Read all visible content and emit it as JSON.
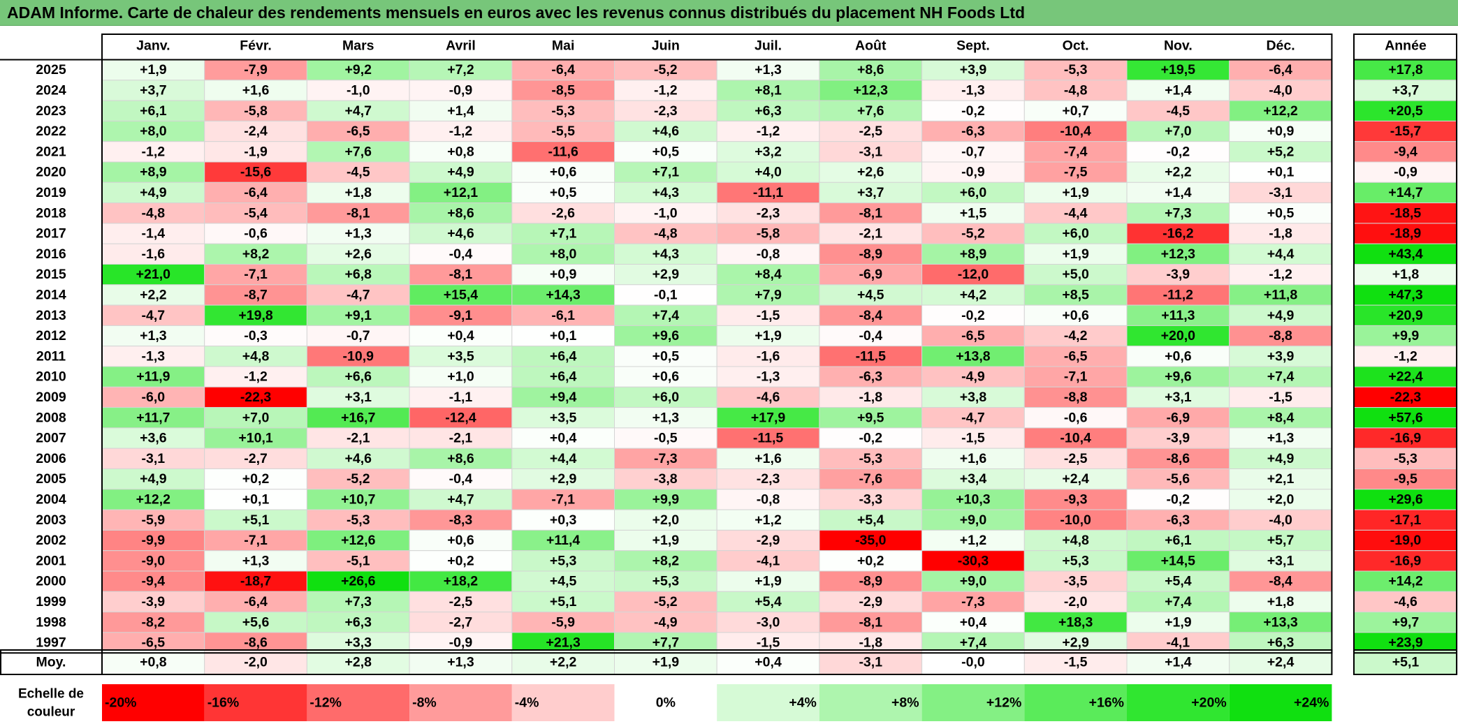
{
  "title": "ADAM Informe. Carte de chaleur des rendements mensuels en euros avec les revenus connus distribués du placement NH Foods Ltd",
  "chart_data": {
    "type": "heatmap",
    "months": [
      "Janv.",
      "Févr.",
      "Mars",
      "Avril",
      "Mai",
      "Juin",
      "Juil.",
      "Août",
      "Sept.",
      "Oct.",
      "Nov.",
      "Déc."
    ],
    "year_column_label": "Année",
    "avg_row_label": "Moy.",
    "rows": [
      {
        "year": "2025",
        "months": [
          "+1,9",
          "-7,9",
          "+9,2",
          "+7,2",
          "-6,4",
          "-5,2",
          "+1,3",
          "+8,6",
          "+3,9",
          "-5,3",
          "+19,5",
          "-6,4"
        ],
        "annual": "+17,8"
      },
      {
        "year": "2024",
        "months": [
          "+3,7",
          "+1,6",
          "-1,0",
          "-0,9",
          "-8,5",
          "-1,2",
          "+8,1",
          "+12,3",
          "-1,3",
          "-4,8",
          "+1,4",
          "-4,0"
        ],
        "annual": "+3,7"
      },
      {
        "year": "2023",
        "months": [
          "+6,1",
          "-5,8",
          "+4,7",
          "+1,4",
          "-5,3",
          "-2,3",
          "+6,3",
          "+7,6",
          "-0,2",
          "+0,7",
          "-4,5",
          "+12,2"
        ],
        "annual": "+20,5"
      },
      {
        "year": "2022",
        "months": [
          "+8,0",
          "-2,4",
          "-6,5",
          "-1,2",
          "-5,5",
          "+4,6",
          "-1,2",
          "-2,5",
          "-6,3",
          "-10,4",
          "+7,0",
          "+0,9"
        ],
        "annual": "-15,7"
      },
      {
        "year": "2021",
        "months": [
          "-1,2",
          "-1,9",
          "+7,6",
          "+0,8",
          "-11,6",
          "+0,5",
          "+3,2",
          "-3,1",
          "-0,7",
          "-7,4",
          "-0,2",
          "+5,2"
        ],
        "annual": "-9,4"
      },
      {
        "year": "2020",
        "months": [
          "+8,9",
          "-15,6",
          "-4,5",
          "+4,9",
          "+0,6",
          "+7,1",
          "+4,0",
          "+2,6",
          "-0,9",
          "-7,5",
          "+2,2",
          "+0,1"
        ],
        "annual": "-0,9"
      },
      {
        "year": "2019",
        "months": [
          "+4,9",
          "-6,4",
          "+1,8",
          "+12,1",
          "+0,5",
          "+4,3",
          "-11,1",
          "+3,7",
          "+6,0",
          "+1,9",
          "+1,4",
          "-3,1"
        ],
        "annual": "+14,7"
      },
      {
        "year": "2018",
        "months": [
          "-4,8",
          "-5,4",
          "-8,1",
          "+8,6",
          "-2,6",
          "-1,0",
          "-2,3",
          "-8,1",
          "+1,5",
          "-4,4",
          "+7,3",
          "+0,5"
        ],
        "annual": "-18,5"
      },
      {
        "year": "2017",
        "months": [
          "-1,4",
          "-0,6",
          "+1,3",
          "+4,6",
          "+7,1",
          "-4,8",
          "-5,8",
          "-2,1",
          "-5,2",
          "+6,0",
          "-16,2",
          "-1,8"
        ],
        "annual": "-18,9"
      },
      {
        "year": "2016",
        "months": [
          "-1,6",
          "+8,2",
          "+2,6",
          "-0,4",
          "+8,0",
          "+4,3",
          "-0,8",
          "-8,9",
          "+8,9",
          "+1,9",
          "+12,3",
          "+4,4"
        ],
        "annual": "+43,4"
      },
      {
        "year": "2015",
        "months": [
          "+21,0",
          "-7,1",
          "+6,8",
          "-8,1",
          "+0,9",
          "+2,9",
          "+8,4",
          "-6,9",
          "-12,0",
          "+5,0",
          "-3,9",
          "-1,2"
        ],
        "annual": "+1,8"
      },
      {
        "year": "2014",
        "months": [
          "+2,2",
          "-8,7",
          "-4,7",
          "+15,4",
          "+14,3",
          "-0,1",
          "+7,9",
          "+4,5",
          "+4,2",
          "+8,5",
          "-11,2",
          "+11,8"
        ],
        "annual": "+47,3"
      },
      {
        "year": "2013",
        "months": [
          "-4,7",
          "+19,8",
          "+9,1",
          "-9,1",
          "-6,1",
          "+7,4",
          "-1,5",
          "-8,4",
          "-0,2",
          "+0,6",
          "+11,3",
          "+4,9"
        ],
        "annual": "+20,9"
      },
      {
        "year": "2012",
        "months": [
          "+1,3",
          "-0,3",
          "-0,7",
          "+0,4",
          "+0,1",
          "+9,6",
          "+1,9",
          "-0,4",
          "-6,5",
          "-4,2",
          "+20,0",
          "-8,8"
        ],
        "annual": "+9,9"
      },
      {
        "year": "2011",
        "months": [
          "-1,3",
          "+4,8",
          "-10,9",
          "+3,5",
          "+6,4",
          "+0,5",
          "-1,6",
          "-11,5",
          "+13,8",
          "-6,5",
          "+0,6",
          "+3,9"
        ],
        "annual": "-1,2"
      },
      {
        "year": "2010",
        "months": [
          "+11,9",
          "-1,2",
          "+6,6",
          "+1,0",
          "+6,4",
          "+0,6",
          "-1,3",
          "-6,3",
          "-4,9",
          "-7,1",
          "+9,6",
          "+7,4"
        ],
        "annual": "+22,4"
      },
      {
        "year": "2009",
        "months": [
          "-6,0",
          "-22,3",
          "+3,1",
          "-1,1",
          "+9,4",
          "+6,0",
          "-4,6",
          "-1,8",
          "+3,8",
          "-8,8",
          "+3,1",
          "-1,5"
        ],
        "annual": "-22,3"
      },
      {
        "year": "2008",
        "months": [
          "+11,7",
          "+7,0",
          "+16,7",
          "-12,4",
          "+3,5",
          "+1,3",
          "+17,9",
          "+9,5",
          "-4,7",
          "-0,6",
          "-6,9",
          "+8,4"
        ],
        "annual": "+57,6"
      },
      {
        "year": "2007",
        "months": [
          "+3,6",
          "+10,1",
          "-2,1",
          "-2,1",
          "+0,4",
          "-0,5",
          "-11,5",
          "-0,2",
          "-1,5",
          "-10,4",
          "-3,9",
          "+1,3"
        ],
        "annual": "-16,9"
      },
      {
        "year": "2006",
        "months": [
          "-3,1",
          "-2,7",
          "+4,6",
          "+8,6",
          "+4,4",
          "-7,3",
          "+1,6",
          "-5,3",
          "+1,6",
          "-2,5",
          "-8,6",
          "+4,9"
        ],
        "annual": "-5,3"
      },
      {
        "year": "2005",
        "months": [
          "+4,9",
          "+0,2",
          "-5,2",
          "-0,4",
          "+2,9",
          "-3,8",
          "-2,3",
          "-7,6",
          "+3,4",
          "+2,4",
          "-5,6",
          "+2,1"
        ],
        "annual": "-9,5"
      },
      {
        "year": "2004",
        "months": [
          "+12,2",
          "+0,1",
          "+10,7",
          "+4,7",
          "-7,1",
          "+9,9",
          "-0,8",
          "-3,3",
          "+10,3",
          "-9,3",
          "-0,2",
          "+2,0"
        ],
        "annual": "+29,6"
      },
      {
        "year": "2003",
        "months": [
          "-5,9",
          "+5,1",
          "-5,3",
          "-8,3",
          "+0,3",
          "+2,0",
          "+1,2",
          "+5,4",
          "+9,0",
          "-10,0",
          "-6,3",
          "-4,0"
        ],
        "annual": "-17,1"
      },
      {
        "year": "2002",
        "months": [
          "-9,9",
          "-7,1",
          "+12,6",
          "+0,6",
          "+11,4",
          "+1,9",
          "-2,9",
          "-35,0",
          "+1,2",
          "+4,8",
          "+6,1",
          "+5,7"
        ],
        "annual": "-19,0"
      },
      {
        "year": "2001",
        "months": [
          "-9,0",
          "+1,3",
          "-5,1",
          "+0,2",
          "+5,3",
          "+8,2",
          "-4,1",
          "+0,2",
          "-30,3",
          "+5,3",
          "+14,5",
          "+3,1"
        ],
        "annual": "-16,9"
      },
      {
        "year": "2000",
        "months": [
          "-9,4",
          "-18,7",
          "+26,6",
          "+18,2",
          "+4,5",
          "+5,3",
          "+1,9",
          "-8,9",
          "+9,0",
          "-3,5",
          "+5,4",
          "-8,4"
        ],
        "annual": "+14,2"
      },
      {
        "year": "1999",
        "months": [
          "-3,9",
          "-6,4",
          "+7,3",
          "-2,5",
          "+5,1",
          "-5,2",
          "+5,4",
          "-2,9",
          "-7,3",
          "-2,0",
          "+7,4",
          "+1,8"
        ],
        "annual": "-4,6"
      },
      {
        "year": "1998",
        "months": [
          "-8,2",
          "+5,6",
          "+6,3",
          "-2,7",
          "-5,9",
          "-4,9",
          "-3,0",
          "-8,1",
          "+0,4",
          "+18,3",
          "+1,9",
          "+13,3"
        ],
        "annual": "+9,7"
      },
      {
        "year": "1997",
        "months": [
          "-6,5",
          "-8,6",
          "+3,3",
          "-0,9",
          "+21,3",
          "+7,7",
          "-1,5",
          "-1,8",
          "+7,4",
          "+2,9",
          "-4,1",
          "+6,3"
        ],
        "annual": "+23,9"
      }
    ],
    "averages": {
      "months": [
        "+0,8",
        "-2,0",
        "+2,8",
        "+1,3",
        "+2,2",
        "+1,9",
        "+0,4",
        "-3,1",
        "-0,0",
        "-1,5",
        "+1,4",
        "+2,4"
      ],
      "annual": "+5,1"
    },
    "scale_label": [
      "Echelle de",
      "couleur"
    ],
    "scale": [
      {
        "label": "-20%",
        "value": -20,
        "color": "#ff0000"
      },
      {
        "label": "-16%",
        "value": -16,
        "color": "#ff3535"
      },
      {
        "label": "-12%",
        "value": -12,
        "color": "#ff6b6b"
      },
      {
        "label": "-8%",
        "value": -8,
        "color": "#ff9b9b"
      },
      {
        "label": "-4%",
        "value": -4,
        "color": "#ffcdcd"
      },
      {
        "label": "0%",
        "value": 0,
        "color": "#ffffff"
      },
      {
        "label": "+4%",
        "value": 4,
        "color": "#d6fad6"
      },
      {
        "label": "+8%",
        "value": 8,
        "color": "#aef5ae"
      },
      {
        "label": "+12%",
        "value": 12,
        "color": "#84f084"
      },
      {
        "label": "+16%",
        "value": 16,
        "color": "#5aeb5a"
      },
      {
        "label": "+20%",
        "value": 20,
        "color": "#30e630"
      },
      {
        "label": "+24%",
        "value": 24,
        "color": "#10e010"
      }
    ]
  }
}
